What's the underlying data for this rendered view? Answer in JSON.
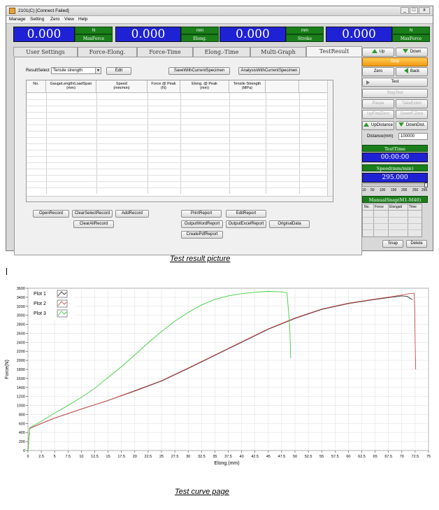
{
  "window": {
    "title": "2101(C)  [Connect Failed]",
    "controls": [
      "_",
      "□",
      "x"
    ]
  },
  "menu": [
    "Manage",
    "Setting",
    "Zero",
    "View",
    "Help"
  ],
  "readouts": [
    {
      "value": "0.000",
      "unit": "N",
      "label": "MaxForce"
    },
    {
      "value": "0.000",
      "unit": "mm",
      "label": "Elong."
    },
    {
      "value": "0.000",
      "unit": "mm",
      "label": "Stroke"
    },
    {
      "value": "0.000",
      "unit": "N",
      "label": "MaxForce"
    }
  ],
  "tabs": [
    "User Settings",
    "Force-Elong.",
    "Force-Time",
    "Elong.-Time",
    "Multi-Graph",
    "TestResult"
  ],
  "result_panel": {
    "result_select_label": "ResultSelect",
    "result_select_value": "Tensile strength",
    "edit": "Edit",
    "save_current": "SaveWithCurrentSpecimen",
    "analysis_current": "AnalysisWithCurrentSpecimen",
    "columns": [
      {
        "l1": "No.",
        "l2": ""
      },
      {
        "l1": "GaugeLength/LoadSpan",
        "l2": "(mm)"
      },
      {
        "l1": "Speed",
        "l2": "(mm/min)"
      },
      {
        "l1": "Force @ Peak",
        "l2": "(N)"
      },
      {
        "l1": "Elong. @ Peak",
        "l2": "(mm)"
      },
      {
        "l1": "Tensile Strength",
        "l2": "(MPa)"
      },
      {
        "l1": "",
        "l2": ""
      },
      {
        "l1": "",
        "l2": ""
      }
    ],
    "buttons": {
      "open_record": "OpenRecord",
      "clear_select": "ClearSelectRecord",
      "add_record": "AddRecord",
      "clear_all": "ClearAllRecord",
      "print_report": "PrintReport",
      "edit_report": "EditReport",
      "output_word": "OutputWordReport",
      "output_excel": "OutputExcelReport",
      "original_data": "OriginalData",
      "create_pdf": "CreatePdfReport"
    }
  },
  "side": {
    "up": "Up",
    "down": "Down",
    "stop": "Stop",
    "zero": "Zero",
    "back": "Back",
    "test": "Test",
    "stop_test": "StopTest",
    "pause": "Pause",
    "take_exten": "TakeExten",
    "up_find_zero": "UpFindZero",
    "down_f_zero": "DownF.Zero",
    "up_distance": "UpDistance",
    "down_dist": "DownDist.",
    "distance_label": "Distance(mm)",
    "distance_value": "100000",
    "test_time_label": "TestTime",
    "test_time_value": "00:00:00",
    "speed_label": "Speed(mm/min)",
    "speed_value": "295.000",
    "slider_ticks": [
      "10",
      "50",
      "100",
      "150",
      "200",
      "250",
      "295"
    ],
    "speed_fraction": 1.0,
    "manual_snap_label": "ManualSnap(M1-M40)",
    "snap_columns": [
      "No.",
      "Force",
      "Elongati",
      "Time"
    ],
    "snap": "Snap",
    "delete": "Delete"
  },
  "captions": {
    "top": "Test result picture",
    "bottom": "Test curve page"
  },
  "colors": {
    "readout_blue": "#1f22d4",
    "label_green": "#1a7e1a",
    "orange": "#f29a12",
    "plot1": "#333333",
    "plot2": "#d04a4a",
    "plot3": "#44cc44"
  },
  "chart_data": {
    "type": "line",
    "title": "",
    "xlabel": "Elong.(mm)",
    "ylabel": "Force(N)",
    "xlim": [
      0,
      75
    ],
    "ylim": [
      0,
      3600
    ],
    "xticks": [
      "0",
      "2.5",
      "5",
      "7.5",
      "10",
      "12.5",
      "15",
      "17.5",
      "20",
      "22.5",
      "25",
      "27.5",
      "30",
      "32.5",
      "35",
      "37.5",
      "40",
      "42.5",
      "45",
      "47.5",
      "50",
      "52.5",
      "55",
      "57.5",
      "60",
      "62.5",
      "65",
      "67.5",
      "70",
      "72.5",
      "75"
    ],
    "yticks": [
      "0",
      "200",
      "400",
      "600",
      "800",
      "1000",
      "1200",
      "1400",
      "1600",
      "1800",
      "2000",
      "2200",
      "2400",
      "2600",
      "2800",
      "3000",
      "3200",
      "3400",
      "3600"
    ],
    "grid": true,
    "legend": "top-left",
    "series": [
      {
        "name": "Plot 1",
        "x": [
          0,
          0.3,
          2.5,
          5,
          7.5,
          10,
          15,
          20,
          25,
          30,
          35,
          40,
          45,
          50,
          55,
          60,
          65,
          68,
          70,
          71,
          71.5,
          72
        ],
        "y": [
          0,
          490,
          600,
          720,
          820,
          920,
          1110,
          1320,
          1540,
          1820,
          2110,
          2400,
          2690,
          2930,
          3130,
          3260,
          3350,
          3400,
          3430,
          3420,
          3380,
          3350
        ]
      },
      {
        "name": "Plot 2",
        "x": [
          0,
          0.3,
          2.5,
          5,
          7.5,
          10,
          15,
          20,
          25,
          30,
          35,
          40,
          45,
          50,
          55,
          60,
          65,
          68,
          70,
          71.5,
          72.3,
          72.4,
          72.5,
          72.6
        ],
        "y": [
          0,
          490,
          600,
          720,
          820,
          920,
          1110,
          1330,
          1550,
          1830,
          2120,
          2410,
          2700,
          2940,
          3140,
          3270,
          3360,
          3410,
          3450,
          3480,
          3490,
          3200,
          2400,
          1800
        ]
      },
      {
        "name": "Plot 3",
        "x": [
          0,
          0.3,
          2.5,
          5,
          7.5,
          10,
          12.5,
          15,
          17.5,
          20,
          22.5,
          25,
          27.5,
          30,
          32.5,
          35,
          37.5,
          40,
          42.5,
          45,
          47.5,
          48.5,
          49,
          49.2
        ],
        "y": [
          0,
          500,
          650,
          830,
          1000,
          1180,
          1380,
          1620,
          1860,
          2120,
          2390,
          2640,
          2870,
          3060,
          3230,
          3350,
          3430,
          3480,
          3510,
          3530,
          3520,
          3500,
          2800,
          2050
        ]
      }
    ]
  }
}
